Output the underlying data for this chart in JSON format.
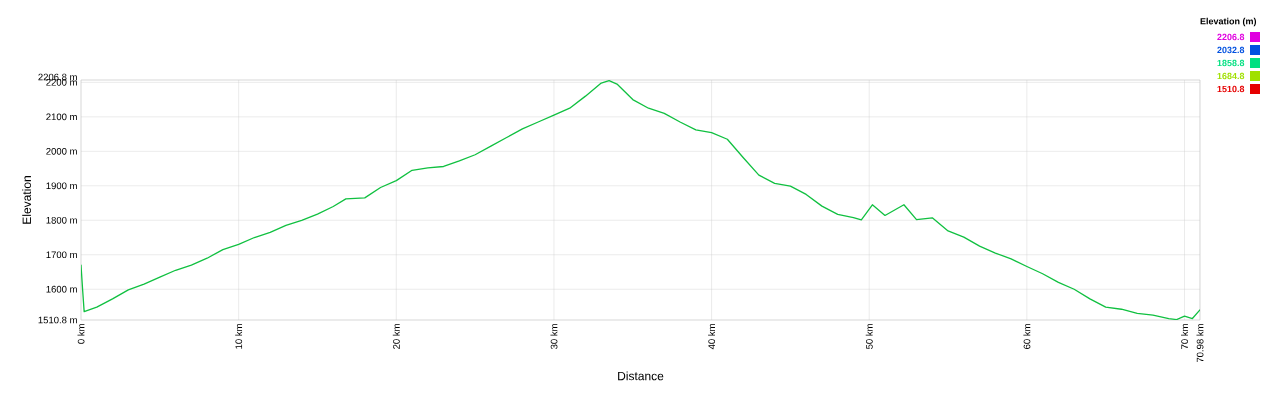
{
  "chart_data": {
    "type": "line",
    "xlabel": "Distance",
    "ylabel": "Elevation",
    "x": [
      0,
      0.1,
      0.2,
      1,
      2,
      3,
      4,
      5,
      6,
      7,
      8,
      9,
      10,
      11,
      12,
      13,
      14,
      15,
      16,
      16.8,
      18,
      19,
      20,
      21,
      22,
      23,
      24,
      25,
      26,
      27,
      28,
      29,
      30,
      31,
      32,
      33,
      33.5,
      34,
      35,
      36,
      37,
      38,
      39,
      40,
      41,
      42,
      43,
      44,
      45,
      46,
      47,
      48,
      49,
      49.5,
      50.2,
      51,
      52.2,
      53,
      54,
      55,
      56,
      57,
      58,
      59,
      60,
      61,
      62,
      63,
      64,
      65,
      66,
      67,
      68,
      69,
      69.5,
      70,
      70.5,
      70.98
    ],
    "values": [
      1670,
      1600,
      1535,
      1548,
      1572,
      1598,
      1615,
      1635,
      1655,
      1670,
      1690,
      1715,
      1730,
      1750,
      1765,
      1785,
      1800,
      1818,
      1840,
      1862,
      1865,
      1895,
      1915,
      1945,
      1952,
      1956,
      1972,
      1990,
      2015,
      2040,
      2065,
      2085,
      2105,
      2125,
      2160,
      2198,
      2205,
      2195,
      2150,
      2125,
      2110,
      2085,
      2062,
      2054,
      2035,
      1982,
      1931,
      1907,
      1899,
      1875,
      1841,
      1817,
      1808,
      1801,
      1845,
      1814,
      1845,
      1802,
      1807,
      1769,
      1751,
      1725,
      1705,
      1688,
      1666,
      1645,
      1620,
      1600,
      1572,
      1548,
      1542,
      1530,
      1525,
      1515,
      1512,
      1522,
      1515,
      1540
    ],
    "xlim": [
      0,
      70.98
    ],
    "xticks": [
      {
        "value": 0,
        "label": "0 km"
      },
      {
        "value": 10,
        "label": "10 km"
      },
      {
        "value": 20,
        "label": "20 km"
      },
      {
        "value": 30,
        "label": "30 km"
      },
      {
        "value": 40,
        "label": "40 km"
      },
      {
        "value": 50,
        "label": "50 km"
      },
      {
        "value": 60,
        "label": "60 km"
      },
      {
        "value": 70,
        "label": "70 km"
      },
      {
        "value": 70.98,
        "label": "70.98 km"
      }
    ],
    "ylim": [
      1510.8,
      2206.8
    ],
    "yticks": [
      {
        "value": 1510.8,
        "label": "1510.8 m"
      },
      {
        "value": 1600,
        "label": "1600 m"
      },
      {
        "value": 1700,
        "label": "1700 m"
      },
      {
        "value": 1800,
        "label": "1800 m"
      },
      {
        "value": 1900,
        "label": "1900 m"
      },
      {
        "value": 2000,
        "label": "2000 m"
      },
      {
        "value": 2100,
        "label": "2100 m"
      },
      {
        "value": 2200,
        "label": "2200 m"
      },
      {
        "value": 2206.8,
        "label": "2206.8 m"
      }
    ],
    "grid": true,
    "color": "#10c040",
    "clabel": "Elevation (m)",
    "clim": [
      1510.8,
      2206.8
    ],
    "cticks": [
      {
        "value": 1510.8,
        "label": "1510.8"
      },
      {
        "value": 1684.8,
        "label": "1684.8"
      },
      {
        "value": 1858.8,
        "label": "1858.8"
      },
      {
        "value": 2032.8,
        "label": "2032.8"
      },
      {
        "value": 2206.8,
        "label": "2206.8"
      }
    ]
  }
}
